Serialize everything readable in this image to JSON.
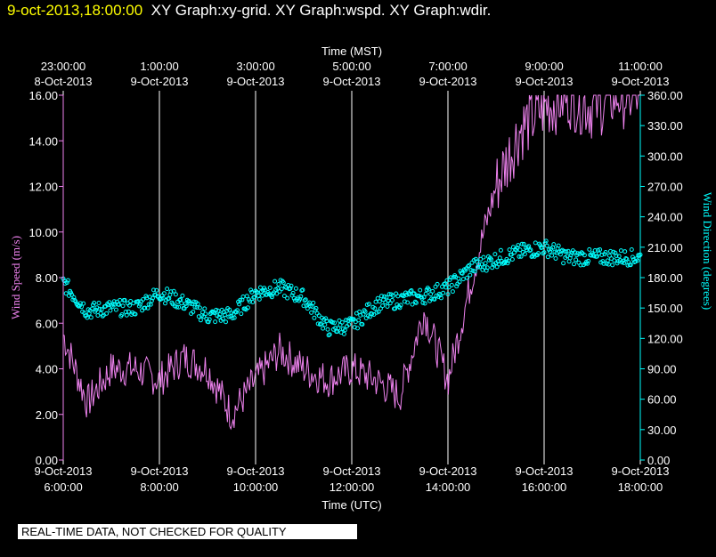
{
  "header": {
    "timestamp": "9-oct-2013,18:00:00",
    "graphs": "XY Graph:xy-grid.  XY Graph:wspd.  XY Graph:wdir."
  },
  "footer_note": "REAL-TIME DATA, NOT CHECKED FOR QUALITY",
  "colors": {
    "wind_speed": "#ee82ee",
    "wind_direction": "#00ffff",
    "grid": "#ffffff",
    "header_timestamp": "#ffff00",
    "background": "#000000"
  },
  "chart_data": {
    "type": "line",
    "top_axis_title": "Time (MST)",
    "bottom_axis_title": "Time (UTC)",
    "top_ticks": [
      {
        "time": "23:00:00",
        "date": "8-Oct-2013"
      },
      {
        "time": "1:00:00",
        "date": "9-Oct-2013"
      },
      {
        "time": "3:00:00",
        "date": "9-Oct-2013"
      },
      {
        "time": "5:00:00",
        "date": "9-Oct-2013"
      },
      {
        "time": "7:00:00",
        "date": "9-Oct-2013"
      },
      {
        "time": "9:00:00",
        "date": "9-Oct-2013"
      },
      {
        "time": "11:00:00",
        "date": "9-Oct-2013"
      }
    ],
    "bottom_ticks": [
      {
        "date": "9-Oct-2013",
        "time": "6:00:00"
      },
      {
        "date": "9-Oct-2013",
        "time": "8:00:00"
      },
      {
        "date": "9-Oct-2013",
        "time": "10:00:00"
      },
      {
        "date": "9-Oct-2013",
        "time": "12:00:00"
      },
      {
        "date": "9-Oct-2013",
        "time": "14:00:00"
      },
      {
        "date": "9-Oct-2013",
        "time": "16:00:00"
      },
      {
        "date": "9-Oct-2013",
        "time": "18:00:00"
      }
    ],
    "x_range_utc": [
      "2013-10-09T06:00",
      "2013-10-09T18:00"
    ],
    "grid": "vertical lines at every 2 h",
    "left_axis": {
      "label": "Wind Speed (m/s)",
      "range": [
        0,
        16
      ],
      "ticks": [
        "0.00",
        "2.00",
        "4.00",
        "6.00",
        "8.00",
        "10.00",
        "12.00",
        "14.00",
        "16.00"
      ]
    },
    "right_axis": {
      "label": "Wind Direction (degrees)",
      "range": [
        0,
        360
      ],
      "ticks": [
        "0.00",
        "30.00",
        "60.00",
        "90.00",
        "120.00",
        "150.00",
        "180.00",
        "210.00",
        "240.00",
        "270.00",
        "300.00",
        "330.00",
        "360.00"
      ]
    },
    "series": [
      {
        "name": "Wind Speed (m/s)",
        "style": "line",
        "axis": "left",
        "x_utc": [
          "06:00",
          "06:30",
          "07:00",
          "07:30",
          "08:00",
          "08:30",
          "09:00",
          "09:30",
          "10:00",
          "10:30",
          "11:00",
          "11:30",
          "12:00",
          "12:30",
          "13:00",
          "13:30",
          "14:00",
          "14:30",
          "15:00",
          "15:30",
          "16:00",
          "16:30",
          "17:00",
          "17:30",
          "18:00"
        ],
        "values": [
          5.5,
          2.5,
          4.0,
          4.0,
          3.5,
          4.5,
          4.0,
          2.0,
          3.5,
          4.8,
          4.0,
          3.5,
          4.0,
          3.5,
          2.8,
          6.5,
          3.5,
          8.0,
          12.0,
          14.5,
          15.5,
          16.0,
          15.5,
          16.0,
          16.0
        ]
      },
      {
        "name": "Wind Direction (degrees)",
        "style": "markers",
        "axis": "right",
        "x_utc": [
          "06:00",
          "06:30",
          "07:00",
          "07:30",
          "08:00",
          "08:30",
          "09:00",
          "09:30",
          "10:00",
          "10:30",
          "11:00",
          "11:30",
          "12:00",
          "12:30",
          "13:00",
          "13:30",
          "14:00",
          "14:30",
          "15:00",
          "15:30",
          "16:00",
          "16:30",
          "17:00",
          "17:30",
          "18:00"
        ],
        "values": [
          175,
          147,
          150,
          150,
          165,
          155,
          142,
          143,
          165,
          170,
          160,
          130,
          133,
          153,
          158,
          162,
          170,
          190,
          198,
          205,
          210,
          200,
          200,
          200,
          200
        ]
      }
    ]
  }
}
